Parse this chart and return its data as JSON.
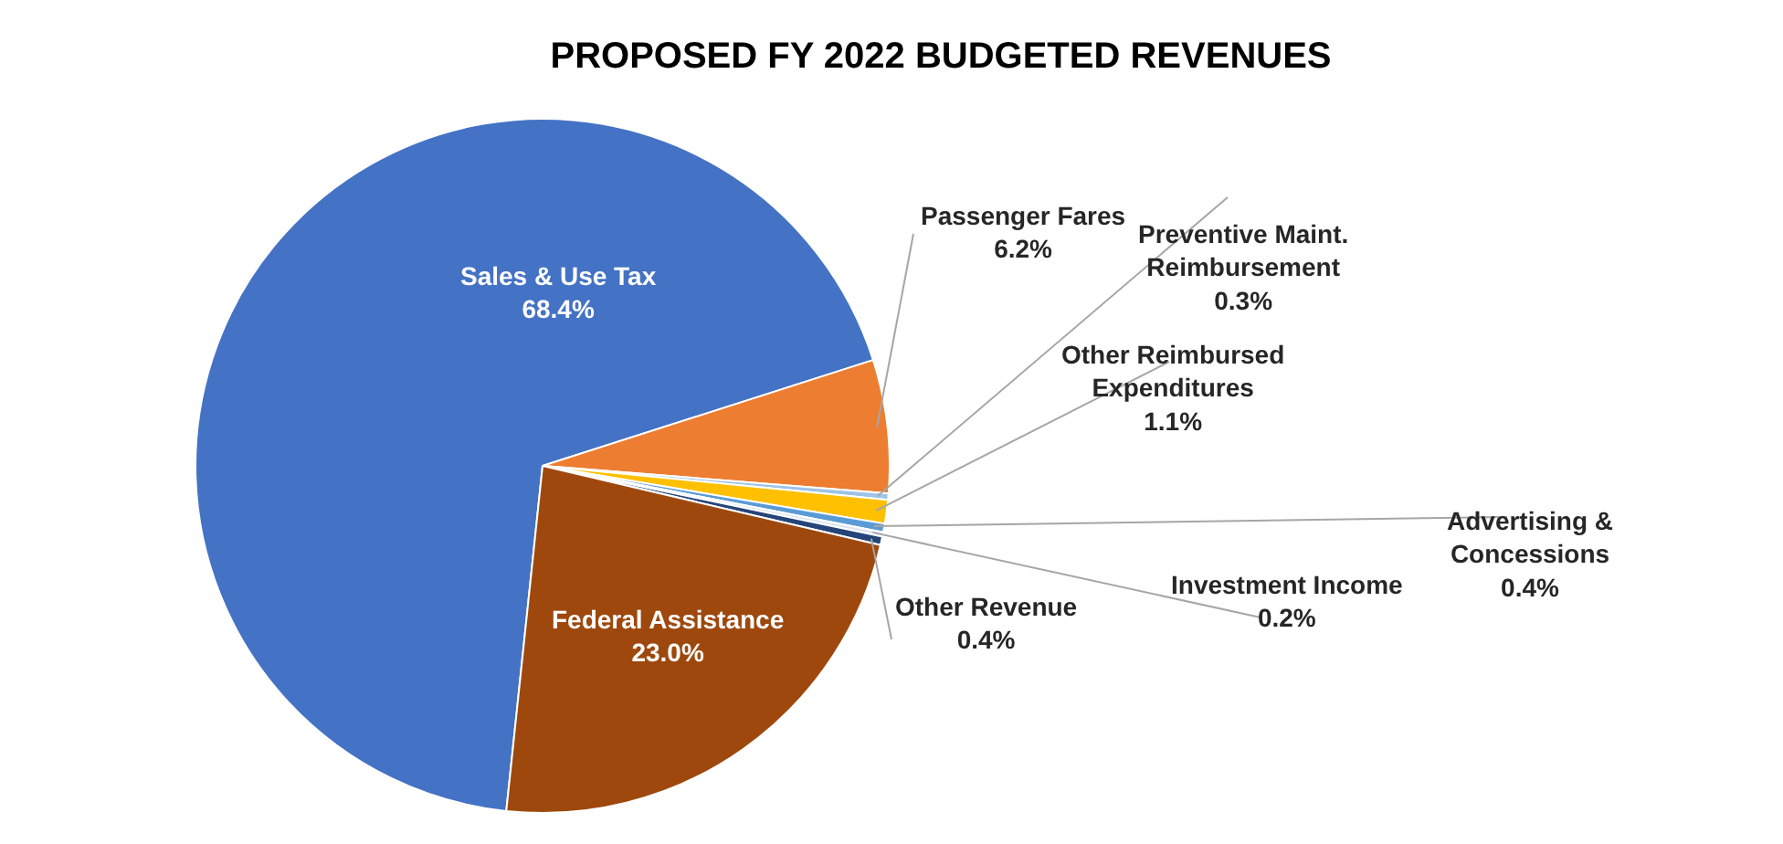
{
  "chart_data": {
    "type": "pie",
    "title": "PROPOSED FY 2022 BUDGETED REVENUES",
    "categories": [
      "Sales & Use Tax",
      "Passenger Fares",
      "Preventive Maint. Reimbursement",
      "Other Reimbursed Expenditures",
      "Advertising & Concessions",
      "Investment Income",
      "Other Revenue",
      "Federal Assistance"
    ],
    "values": [
      68.4,
      6.2,
      0.3,
      1.1,
      0.4,
      0.2,
      0.4,
      23.0
    ],
    "value_labels": [
      "68.4%",
      "6.2%",
      "0.3%",
      "1.1%",
      "0.4%",
      "0.2%",
      "0.4%",
      "23.0%"
    ],
    "colors": [
      "#4472c4",
      "#ed7d31",
      "#9dc3e6",
      "#ffc000",
      "#5b9bd5",
      "#dce6f2",
      "#264478",
      "#9e480e"
    ],
    "legend": false
  }
}
